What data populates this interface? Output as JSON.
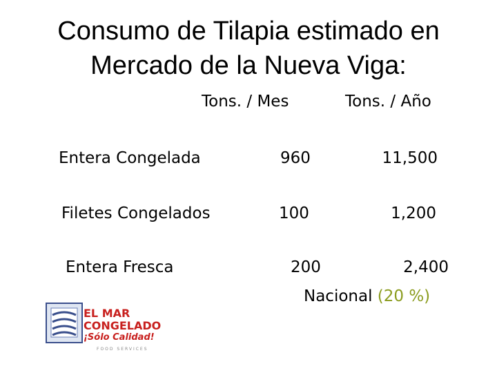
{
  "title": {
    "line1": "Consumo de Tilapia estimado en",
    "line2": "Mercado de la Nueva Viga:"
  },
  "table": {
    "headers": [
      "Tons. / Mes",
      "Tons. / Año"
    ],
    "rows": [
      [
        "Entera Congelada",
        "960",
        "11,500"
      ],
      [
        "Filetes Congelados",
        "100",
        "1,200"
      ],
      [
        "Entera Fresca",
        "200",
        "2,400"
      ]
    ]
  },
  "note": {
    "label": "Nacional",
    "value": "(20 %)"
  },
  "logo": {
    "line1": "EL MAR",
    "line2": "CONGELADO",
    "tagline": "¡Sólo Calidad!",
    "subtitle": "FOOD SERVICES"
  }
}
